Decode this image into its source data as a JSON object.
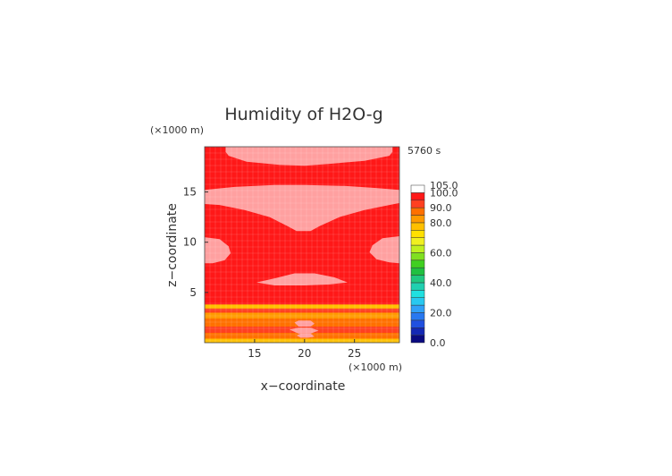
{
  "chart_data": {
    "type": "heatmap",
    "title": "Humidity of H2O-g",
    "time_label": "5760 s",
    "xlabel": "x−coordinate",
    "ylabel": "z−coordinate",
    "x_unit": "(×1000 m)",
    "y_unit": "(×1000 m)",
    "xlim": [
      10,
      29.5
    ],
    "ylim": [
      0,
      19.5
    ],
    "x_ticks": [
      15,
      20,
      25
    ],
    "y_ticks": [
      5,
      10,
      15
    ],
    "colorbar": {
      "levels": [
        0,
        5,
        10,
        15,
        20,
        25,
        30,
        35,
        40,
        45,
        50,
        55,
        60,
        65,
        70,
        75,
        80,
        85,
        90,
        95,
        100,
        105
      ],
      "colors": [
        "#0a0a80",
        "#1428b4",
        "#2050e0",
        "#2878f0",
        "#30a0f8",
        "#28c8f0",
        "#20e0e0",
        "#20d0b0",
        "#20c880",
        "#20c040",
        "#40d020",
        "#80e020",
        "#c0f020",
        "#f0f020",
        "#ffe000",
        "#ffc000",
        "#ff9a00",
        "#ff7000",
        "#ff4020",
        "#ff1818",
        "#ffffff"
      ],
      "tick_labels": [
        "0.0",
        "20.0",
        "40.0",
        "60.0",
        "80.0",
        "90.0",
        "100.0",
        "105.0"
      ],
      "tick_values": [
        0,
        20,
        40,
        60,
        80,
        90,
        100,
        105
      ]
    },
    "field_description": {
      "background_value": 97,
      "high_patch_value": 101,
      "bands_bottom": [
        {
          "z": [
            0,
            0.4
          ],
          "value": 75
        },
        {
          "z": [
            0.4,
            1.0
          ],
          "value": 86
        },
        {
          "z": [
            1.0,
            1.6
          ],
          "value": 92
        },
        {
          "z": [
            1.6,
            2.4
          ],
          "value": 86
        },
        {
          "z": [
            2.4,
            3.0
          ],
          "value": 80
        },
        {
          "z": [
            3.0,
            3.4
          ],
          "value": 92
        },
        {
          "z": [
            3.4,
            3.8
          ],
          "value": 78
        }
      ]
    }
  }
}
